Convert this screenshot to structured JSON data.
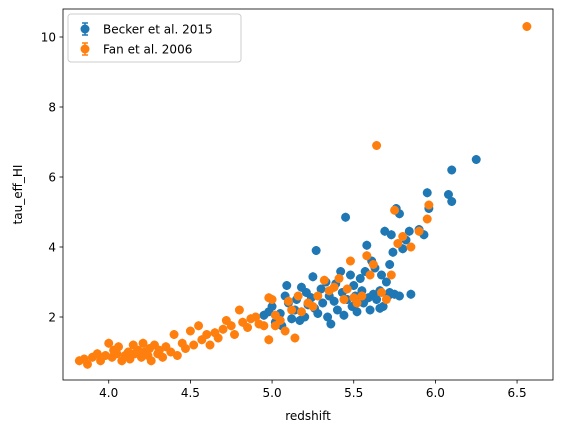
{
  "chart_data": {
    "type": "scatter",
    "xlabel": "redshift",
    "ylabel": "tau_eff_HI",
    "xlim": [
      3.72,
      6.72
    ],
    "ylim": [
      0.2,
      10.8
    ],
    "xticks": [
      4.0,
      4.5,
      5.0,
      5.5,
      6.0,
      6.5
    ],
    "xtick_labels": [
      "4.0",
      "4.5",
      "5.0",
      "5.5",
      "6.0",
      "6.5"
    ],
    "yticks": [
      2,
      4,
      6,
      8,
      10
    ],
    "ytick_labels": [
      "2",
      "4",
      "6",
      "8",
      "10"
    ],
    "grid": false,
    "legend_position": "top-left",
    "series": [
      {
        "name": "Becker et al. 2015",
        "color": "#1f77b4",
        "marker": "circle-with-errorbar",
        "points": [
          [
            4.95,
            2.05
          ],
          [
            4.98,
            2.15
          ],
          [
            5.0,
            2.3
          ],
          [
            5.02,
            1.85
          ],
          [
            5.05,
            2.1
          ],
          [
            5.06,
            1.75
          ],
          [
            5.08,
            2.6
          ],
          [
            5.09,
            2.9
          ],
          [
            5.1,
            2.4
          ],
          [
            5.12,
            1.95
          ],
          [
            5.14,
            2.2
          ],
          [
            5.15,
            2.5
          ],
          [
            5.17,
            1.9
          ],
          [
            5.18,
            2.85
          ],
          [
            5.2,
            2.0
          ],
          [
            5.21,
            2.7
          ],
          [
            5.22,
            2.35
          ],
          [
            5.24,
            2.55
          ],
          [
            5.25,
            3.15
          ],
          [
            5.26,
            2.25
          ],
          [
            5.27,
            3.9
          ],
          [
            5.28,
            2.1
          ],
          [
            5.3,
            2.8
          ],
          [
            5.31,
            2.4
          ],
          [
            5.33,
            3.0
          ],
          [
            5.34,
            2.0
          ],
          [
            5.35,
            2.6
          ],
          [
            5.36,
            1.8
          ],
          [
            5.38,
            2.45
          ],
          [
            5.39,
            2.95
          ],
          [
            5.4,
            2.2
          ],
          [
            5.42,
            3.3
          ],
          [
            5.43,
            2.7
          ],
          [
            5.44,
            2.05
          ],
          [
            5.45,
            4.85
          ],
          [
            5.46,
            2.5
          ],
          [
            5.48,
            3.2
          ],
          [
            5.49,
            2.3
          ],
          [
            5.5,
            2.9
          ],
          [
            5.51,
            2.6
          ],
          [
            5.52,
            2.15
          ],
          [
            5.54,
            3.1
          ],
          [
            5.55,
            2.75
          ],
          [
            5.56,
            2.4
          ],
          [
            5.57,
            3.3
          ],
          [
            5.58,
            4.05
          ],
          [
            5.59,
            2.55
          ],
          [
            5.6,
            2.2
          ],
          [
            5.61,
            3.6
          ],
          [
            5.62,
            2.65
          ],
          [
            5.63,
            3.4
          ],
          [
            5.64,
            2.5
          ],
          [
            5.66,
            2.75
          ],
          [
            5.67,
            3.2
          ],
          [
            5.68,
            2.3
          ],
          [
            5.69,
            4.45
          ],
          [
            5.7,
            3.0
          ],
          [
            5.71,
            2.6
          ],
          [
            5.72,
            3.5
          ],
          [
            5.73,
            4.35
          ],
          [
            5.74,
            3.85
          ],
          [
            5.75,
            2.65
          ],
          [
            5.76,
            5.1
          ],
          [
            5.78,
            4.95
          ],
          [
            5.8,
            3.95
          ],
          [
            5.82,
            4.2
          ],
          [
            5.84,
            4.45
          ],
          [
            5.85,
            2.65
          ],
          [
            5.9,
            4.5
          ],
          [
            5.93,
            4.35
          ],
          [
            5.95,
            5.55
          ],
          [
            5.96,
            5.1
          ],
          [
            6.08,
            5.5
          ],
          [
            6.1,
            5.3
          ],
          [
            6.1,
            6.2
          ],
          [
            6.25,
            6.5
          ],
          [
            5.66,
            2.25
          ],
          [
            5.72,
            2.7
          ],
          [
            5.78,
            2.6
          ]
        ]
      },
      {
        "name": "Fan et al. 2006",
        "color": "#ff7f0e",
        "marker": "circle-with-errorbar",
        "points": [
          [
            3.82,
            0.75
          ],
          [
            3.85,
            0.8
          ],
          [
            3.87,
            0.65
          ],
          [
            3.9,
            0.85
          ],
          [
            3.93,
            0.95
          ],
          [
            3.95,
            0.75
          ],
          [
            3.98,
            0.9
          ],
          [
            4.0,
            1.25
          ],
          [
            4.02,
            0.85
          ],
          [
            4.03,
            1.05
          ],
          [
            4.05,
            0.95
          ],
          [
            4.06,
            1.15
          ],
          [
            4.08,
            0.75
          ],
          [
            4.1,
            0.9
          ],
          [
            4.12,
            1.0
          ],
          [
            4.13,
            0.8
          ],
          [
            4.15,
            1.2
          ],
          [
            4.16,
            0.95
          ],
          [
            4.18,
            1.05
          ],
          [
            4.2,
            0.85
          ],
          [
            4.21,
            1.25
          ],
          [
            4.22,
            1.0
          ],
          [
            4.24,
            0.9
          ],
          [
            4.25,
            1.1
          ],
          [
            4.26,
            0.75
          ],
          [
            4.28,
            1.2
          ],
          [
            4.3,
            0.95
          ],
          [
            4.31,
            1.05
          ],
          [
            4.33,
            0.85
          ],
          [
            4.35,
            1.15
          ],
          [
            4.38,
            1.0
          ],
          [
            4.4,
            1.5
          ],
          [
            4.42,
            0.9
          ],
          [
            4.45,
            1.25
          ],
          [
            4.47,
            1.1
          ],
          [
            4.5,
            1.6
          ],
          [
            4.52,
            1.2
          ],
          [
            4.55,
            1.75
          ],
          [
            4.57,
            1.35
          ],
          [
            4.6,
            1.5
          ],
          [
            4.62,
            1.2
          ],
          [
            4.65,
            1.55
          ],
          [
            4.67,
            1.4
          ],
          [
            4.7,
            1.65
          ],
          [
            4.72,
            1.9
          ],
          [
            4.75,
            1.75
          ],
          [
            4.77,
            1.5
          ],
          [
            4.8,
            2.2
          ],
          [
            4.82,
            1.85
          ],
          [
            4.85,
            1.7
          ],
          [
            4.87,
            1.95
          ],
          [
            4.9,
            2.0
          ],
          [
            4.92,
            1.8
          ],
          [
            4.95,
            1.75
          ],
          [
            4.98,
            2.55
          ],
          [
            5.0,
            2.5
          ],
          [
            5.02,
            2.05
          ],
          [
            5.05,
            1.9
          ],
          [
            5.08,
            1.6
          ],
          [
            5.1,
            2.45
          ],
          [
            5.12,
            2.2
          ],
          [
            5.14,
            1.4
          ],
          [
            5.16,
            2.6
          ],
          [
            5.18,
            2.15
          ],
          [
            5.22,
            2.4
          ],
          [
            5.25,
            2.3
          ],
          [
            5.28,
            2.6
          ],
          [
            5.32,
            3.05
          ],
          [
            5.35,
            2.75
          ],
          [
            5.38,
            2.85
          ],
          [
            5.41,
            3.1
          ],
          [
            5.44,
            2.5
          ],
          [
            5.46,
            2.8
          ],
          [
            5.48,
            3.6
          ],
          [
            5.5,
            2.55
          ],
          [
            5.52,
            2.4
          ],
          [
            5.55,
            2.6
          ],
          [
            5.58,
            3.75
          ],
          [
            5.6,
            3.2
          ],
          [
            5.62,
            3.5
          ],
          [
            5.64,
            6.9
          ],
          [
            5.67,
            2.7
          ],
          [
            5.7,
            2.5
          ],
          [
            5.73,
            3.2
          ],
          [
            5.75,
            5.05
          ],
          [
            5.77,
            4.1
          ],
          [
            5.8,
            4.3
          ],
          [
            5.85,
            4.0
          ],
          [
            5.9,
            4.45
          ],
          [
            5.95,
            4.8
          ],
          [
            5.96,
            5.2
          ],
          [
            6.56,
            10.3
          ],
          [
            4.98,
            1.35
          ],
          [
            5.02,
            1.75
          ]
        ]
      }
    ]
  }
}
